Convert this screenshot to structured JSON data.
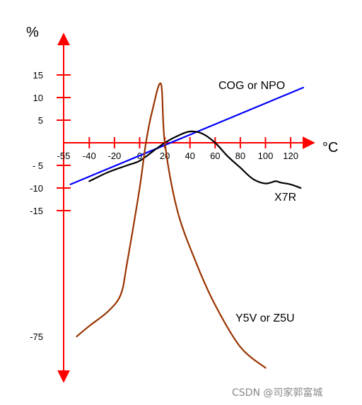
{
  "chart_data": {
    "type": "line",
    "y_unit": "%",
    "x_unit": "°C",
    "x_ticks": [
      -55,
      -40,
      -20,
      0,
      20,
      40,
      60,
      80,
      100,
      120
    ],
    "x_tick_labels": [
      "-55",
      "-40",
      "-20",
      "0",
      "20",
      "40",
      "60",
      "80",
      "100",
      "120"
    ],
    "y_ticks_upper": [
      15,
      10,
      5
    ],
    "y_ticks_lower": [
      -5,
      -10,
      -15
    ],
    "y_tick_labels": [
      "15",
      "10",
      "5",
      "- 5",
      "-10",
      "-15",
      "-75"
    ],
    "y_break_value": -75,
    "colors": {
      "axis": "#ff0000",
      "cog": "#0000ff",
      "x7r": "#000000",
      "y5v": "#993300"
    },
    "series": [
      {
        "name": "COG or NPO",
        "key": "cog",
        "points": [
          [
            -55,
            -9.2
          ],
          [
            130,
            12.2
          ]
        ]
      },
      {
        "name": "X7R",
        "key": "x7r",
        "points": [
          [
            -40,
            -8.5
          ],
          [
            -25,
            -6.5
          ],
          [
            -10,
            -5
          ],
          [
            0,
            -4
          ],
          [
            10,
            -2
          ],
          [
            20,
            0
          ],
          [
            30,
            1.5
          ],
          [
            40,
            2.5
          ],
          [
            50,
            2
          ],
          [
            60,
            0
          ],
          [
            70,
            -3
          ],
          [
            80,
            -5.5
          ],
          [
            90,
            -8
          ],
          [
            100,
            -9
          ],
          [
            108,
            -8.5
          ],
          [
            112,
            -8.8
          ],
          [
            120,
            -9.2
          ],
          [
            128,
            -10
          ]
        ]
      },
      {
        "name": "Y5V or Z5U",
        "key": "y5v",
        "points": [
          [
            -50,
            -75
          ],
          [
            -40,
            -70
          ],
          [
            -25,
            -63
          ],
          [
            -15,
            -55
          ],
          [
            -10,
            -40
          ],
          [
            0,
            -10
          ],
          [
            5,
            0
          ],
          [
            10,
            7
          ],
          [
            17,
            13
          ],
          [
            20,
            0
          ],
          [
            30,
            -15
          ],
          [
            45,
            -40
          ],
          [
            60,
            -60
          ],
          [
            80,
            -80
          ],
          [
            100,
            -90
          ]
        ]
      }
    ]
  },
  "watermark": "CSDN @司家郭富城"
}
